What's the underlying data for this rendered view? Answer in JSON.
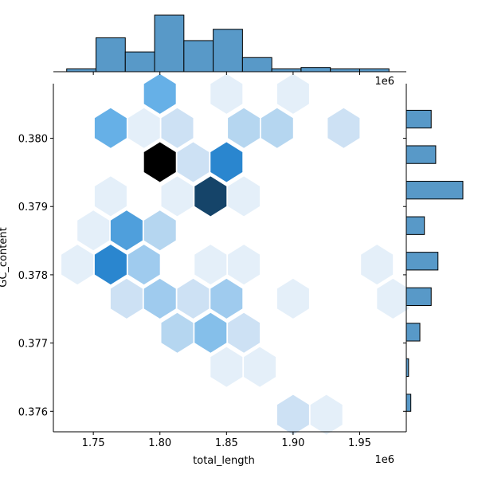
{
  "chart_data": {
    "type": "heatmap",
    "subtype": "jointplot-hexbin",
    "xlabel": "total_length",
    "ylabel": "GC_content",
    "x_offset_label": "1e6",
    "y_top_offset_label": "1e6",
    "xlim": [
      1.72,
      1.985
    ],
    "ylim": [
      0.3757,
      0.3808
    ],
    "x_ticks": [
      1.75,
      1.8,
      1.85,
      1.9,
      1.95
    ],
    "x_tick_labels": [
      "1.75",
      "1.80",
      "1.85",
      "1.90",
      "1.95"
    ],
    "y_ticks": [
      0.376,
      0.377,
      0.378,
      0.379,
      0.38
    ],
    "y_tick_labels": [
      "0.376",
      "0.377",
      "0.378",
      "0.379",
      "0.380"
    ],
    "colors": {
      "hist_fill": "#5899c8",
      "hist_edge": "#000000",
      "hex_ramp": [
        "#e4eff9",
        "#cde1f4",
        "#b5d6f0",
        "#9fcbee",
        "#85bfea",
        "#66b0e7",
        "#4f9fdc",
        "#2a86cf",
        "#154469",
        "#000000"
      ]
    },
    "hexbins": [
      {
        "x": 1.8,
        "y": 0.38065,
        "level": 6
      },
      {
        "x": 1.85,
        "y": 0.38065,
        "level": 1
      },
      {
        "x": 1.9,
        "y": 0.38065,
        "level": 1
      },
      {
        "x": 1.763,
        "y": 0.38015,
        "level": 6
      },
      {
        "x": 1.788,
        "y": 0.38015,
        "level": 1
      },
      {
        "x": 1.813,
        "y": 0.38015,
        "level": 2
      },
      {
        "x": 1.863,
        "y": 0.38015,
        "level": 3
      },
      {
        "x": 1.888,
        "y": 0.38015,
        "level": 3
      },
      {
        "x": 1.938,
        "y": 0.38015,
        "level": 2
      },
      {
        "x": 1.8,
        "y": 0.37965,
        "level": 10
      },
      {
        "x": 1.825,
        "y": 0.37965,
        "level": 2
      },
      {
        "x": 1.85,
        "y": 0.37965,
        "level": 8
      },
      {
        "x": 1.763,
        "y": 0.37915,
        "level": 1
      },
      {
        "x": 1.813,
        "y": 0.37915,
        "level": 1
      },
      {
        "x": 1.838,
        "y": 0.37915,
        "level": 9
      },
      {
        "x": 1.863,
        "y": 0.37915,
        "level": 1
      },
      {
        "x": 1.75,
        "y": 0.37865,
        "level": 1
      },
      {
        "x": 1.775,
        "y": 0.37865,
        "level": 7
      },
      {
        "x": 1.8,
        "y": 0.37865,
        "level": 3
      },
      {
        "x": 1.738,
        "y": 0.37815,
        "level": 1
      },
      {
        "x": 1.763,
        "y": 0.37815,
        "level": 8
      },
      {
        "x": 1.788,
        "y": 0.37815,
        "level": 4
      },
      {
        "x": 1.838,
        "y": 0.37815,
        "level": 1
      },
      {
        "x": 1.863,
        "y": 0.37815,
        "level": 1
      },
      {
        "x": 1.963,
        "y": 0.37815,
        "level": 1
      },
      {
        "x": 1.775,
        "y": 0.37765,
        "level": 2
      },
      {
        "x": 1.8,
        "y": 0.37765,
        "level": 4
      },
      {
        "x": 1.825,
        "y": 0.37765,
        "level": 2
      },
      {
        "x": 1.85,
        "y": 0.37765,
        "level": 4
      },
      {
        "x": 1.9,
        "y": 0.37765,
        "level": 1
      },
      {
        "x": 1.975,
        "y": 0.37765,
        "level": 1
      },
      {
        "x": 1.813,
        "y": 0.37715,
        "level": 3
      },
      {
        "x": 1.838,
        "y": 0.37715,
        "level": 5
      },
      {
        "x": 1.863,
        "y": 0.37715,
        "level": 2
      },
      {
        "x": 1.85,
        "y": 0.37665,
        "level": 1
      },
      {
        "x": 1.875,
        "y": 0.37665,
        "level": 1
      },
      {
        "x": 1.9,
        "y": 0.37595,
        "level": 2
      },
      {
        "x": 1.925,
        "y": 0.37595,
        "level": 1
      }
    ],
    "x_histogram": {
      "bin_edges": [
        1.73,
        1.752,
        1.774,
        1.796,
        1.818,
        1.84,
        1.862,
        1.884,
        1.906,
        1.928,
        1.95,
        1.972
      ],
      "counts": [
        1,
        12,
        7,
        20,
        11,
        15,
        5,
        1,
        1.5,
        1,
        1
      ]
    },
    "y_histogram": {
      "bin_edges": [
        0.376,
        0.37625,
        0.37651,
        0.37677,
        0.37703,
        0.37729,
        0.37755,
        0.37781,
        0.37807,
        0.37833,
        0.37859,
        0.37885,
        0.37911,
        0.37937,
        0.37963,
        0.37989,
        0.38015,
        0.38041
      ],
      "counts": [
        1,
        0,
        0.5,
        0,
        3,
        0,
        5.5,
        0,
        7,
        0,
        4,
        0,
        12.5,
        0,
        6.5,
        0,
        5.5
      ]
    }
  }
}
